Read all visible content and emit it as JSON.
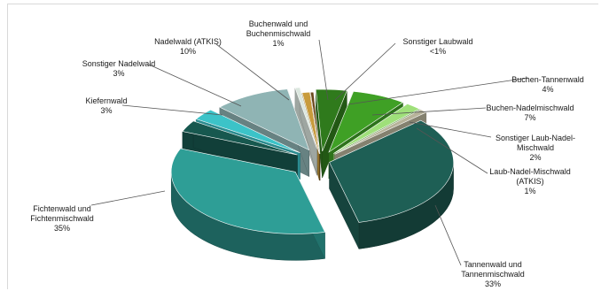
{
  "chart_data": {
    "type": "pie",
    "style": "3d-exploded",
    "title": "",
    "slices": [
      {
        "name": "Buchenwald und Buchenmischwald",
        "value": 1,
        "value_label": "1%",
        "color": "#c89b3c"
      },
      {
        "name": "Sonstiger Laubwald",
        "value": 0.4,
        "value_label": "<1%",
        "color": "#6b4a1e"
      },
      {
        "name": "Buchen-Tannenwald",
        "value": 4,
        "value_label": "4%",
        "color": "#2f7a1c"
      },
      {
        "name": "Buchen-Nadelmischwald",
        "value": 7,
        "value_label": "7%",
        "color": "#3fa025"
      },
      {
        "name": "Sonstiger Laub-Nadel-Mischwald",
        "value": 2,
        "value_label": "2%",
        "color": "#9fe07a"
      },
      {
        "name": "Laub-Nadel-Mischwald (ATKIS)",
        "value": 1,
        "value_label": "1%",
        "color": "#b7b39a"
      },
      {
        "name": "Tannenwald und Tannenmischwald",
        "value": 33,
        "value_label": "33%",
        "color": "#1e5f55"
      },
      {
        "name": "Fichtenwald und Fichtenmischwald",
        "value": 35,
        "value_label": "35%",
        "color": "#2e9e96"
      },
      {
        "name": "Kiefernwald",
        "value": 3,
        "value_label": "3%",
        "color": "#17584f"
      },
      {
        "name": "Sonstiger Nadelwald",
        "value": 3,
        "value_label": "3%",
        "color": "#3cc3c8"
      },
      {
        "name": "Nadelwald (ATKIS)",
        "value": 10,
        "value_label": "10%",
        "color": "#8fb4b4"
      },
      {
        "name": "",
        "value": 0.6,
        "value_label": "",
        "color": "#dbe7df"
      }
    ]
  },
  "labels": [
    {
      "lines": [
        "Buchenwald und",
        "Buchenmischwald",
        "1%"
      ]
    },
    {
      "lines": [
        "Sonstiger Laubwald",
        "<1%"
      ]
    },
    {
      "lines": [
        "Buchen-Tannenwald",
        "4%"
      ]
    },
    {
      "lines": [
        "Buchen-Nadelmischwald",
        "7%"
      ]
    },
    {
      "lines": [
        "Sonstiger Laub-Nadel-",
        "Mischwald",
        "2%"
      ]
    },
    {
      "lines": [
        "Laub-Nadel-Mischwald",
        "(ATKIS)",
        "1%"
      ]
    },
    {
      "lines": [
        "Tannenwald und",
        "Tannenmischwald",
        "33%"
      ]
    },
    {
      "lines": [
        "Fichtenwald und",
        "Fichtenmischwald",
        "35%"
      ]
    },
    {
      "lines": [
        "Kiefernwald",
        "3%"
      ]
    },
    {
      "lines": [
        "Sonstiger Nadelwald",
        "3%"
      ]
    },
    {
      "lines": [
        "Nadelwald (ATKIS)",
        "10%"
      ]
    }
  ]
}
